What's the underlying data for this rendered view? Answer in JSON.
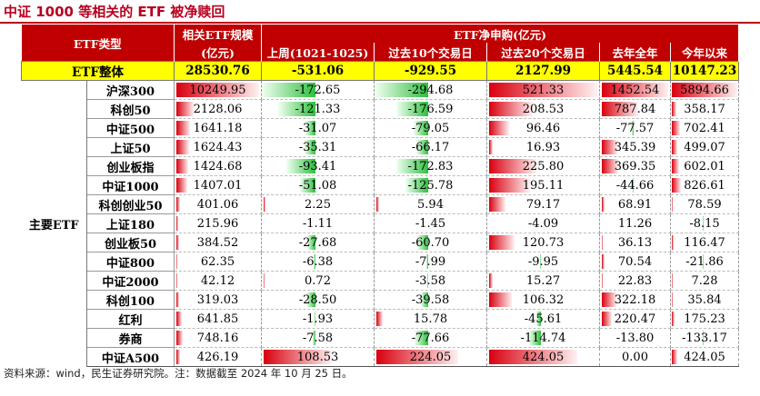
{
  "title": "中证 1000 等相关的 ETF 被净赎回",
  "header": {
    "etf_type": "ETF类型",
    "scale_line1": "相关ETF规模",
    "scale_line2": "(亿元)",
    "group_label": "ETF净申购(亿元)",
    "cols": [
      "上周(1021-1025)",
      "过去10个交易日",
      "过去20个交易日",
      "去年全年",
      "今年以来"
    ]
  },
  "total": {
    "label": "ETF整体",
    "values": [
      "28530.76",
      "-531.06",
      "-929.55",
      "2127.99",
      "5445.54",
      "10147.23"
    ]
  },
  "group_label": "主要ETF",
  "rows": [
    {
      "name": "沪深300",
      "values": [
        "10249.95",
        "-172.65",
        "-294.68",
        "521.33",
        "1452.54",
        "5894.66"
      ]
    },
    {
      "name": "科创50",
      "values": [
        "2128.06",
        "-121.33",
        "-176.59",
        "208.53",
        "787.84",
        "358.17"
      ]
    },
    {
      "name": "中证500",
      "values": [
        "1641.18",
        "-31.07",
        "-79.05",
        "96.46",
        "-77.57",
        "702.41"
      ]
    },
    {
      "name": "上证50",
      "values": [
        "1624.43",
        "-35.31",
        "-66.17",
        "16.93",
        "345.39",
        "499.07"
      ]
    },
    {
      "name": "创业板指",
      "values": [
        "1424.68",
        "-93.41",
        "-172.83",
        "225.80",
        "369.35",
        "602.01"
      ]
    },
    {
      "name": "中证1000",
      "values": [
        "1407.01",
        "-51.08",
        "-125.78",
        "195.11",
        "-44.66",
        "826.61"
      ]
    },
    {
      "name": "科创创业50",
      "values": [
        "401.06",
        "2.25",
        "5.94",
        "79.17",
        "68.91",
        "78.59"
      ]
    },
    {
      "name": "上证180",
      "values": [
        "215.96",
        "-1.11",
        "-1.45",
        "-4.09",
        "11.26",
        "-8.15"
      ]
    },
    {
      "name": "创业板50",
      "values": [
        "384.52",
        "-27.68",
        "-60.70",
        "120.73",
        "36.13",
        "116.47"
      ]
    },
    {
      "name": "中证800",
      "values": [
        "62.35",
        "-6.38",
        "-7.99",
        "-9.95",
        "70.54",
        "-21.86"
      ]
    },
    {
      "name": "中证2000",
      "values": [
        "42.12",
        "0.72",
        "-3.58",
        "15.27",
        "22.83",
        "7.28"
      ]
    },
    {
      "name": "科创100",
      "values": [
        "319.03",
        "-28.50",
        "-39.58",
        "106.32",
        "322.18",
        "35.84"
      ]
    },
    {
      "name": "红利",
      "values": [
        "641.85",
        "-1.93",
        "15.78",
        "-45.61",
        "220.47",
        "175.23"
      ]
    },
    {
      "name": "券商",
      "values": [
        "748.16",
        "-7.58",
        "-77.66",
        "-114.74",
        "-13.80",
        "-133.17"
      ]
    },
    {
      "name": "中证A500",
      "values": [
        "426.19",
        "108.53",
        "224.05",
        "424.05",
        "0.00",
        "424.05"
      ]
    }
  ],
  "colors": {
    "positive": "#d9000f",
    "negative": "#2fbf3f",
    "header": "#c00000",
    "total_bg": "#ffff00"
  },
  "footnote": "资料来源：wind，民生证券研究院。注：数据截至 2024 年 10 月 25 日。"
}
